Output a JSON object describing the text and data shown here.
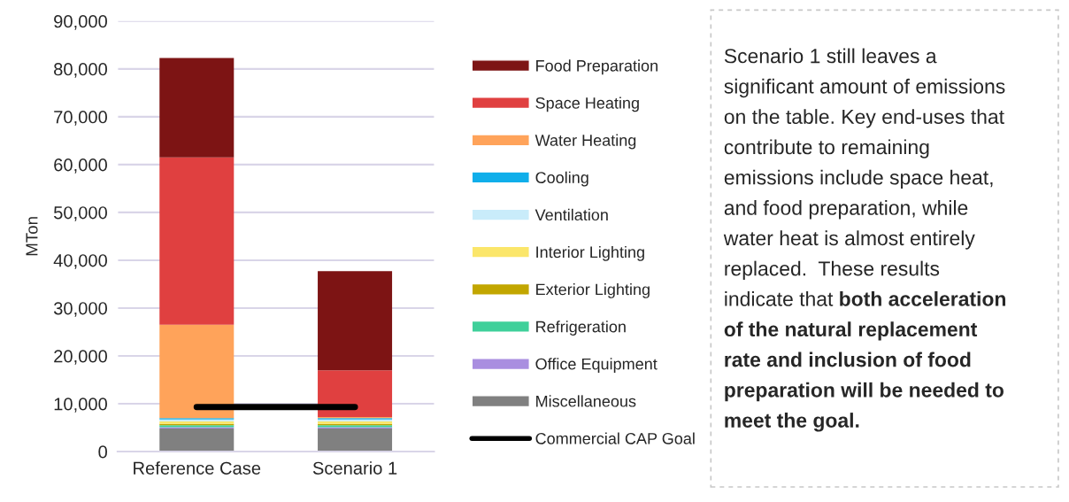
{
  "chart_data": {
    "type": "bar",
    "stacked": true,
    "ylabel": "MTon",
    "categories": [
      "Reference Case",
      "Scenario 1"
    ],
    "series": [
      {
        "name": "Miscellaneous",
        "color": "#808080",
        "values": [
          4800,
          4800
        ]
      },
      {
        "name": "Office Equipment",
        "color": "#a98ee0",
        "values": [
          300,
          300
        ]
      },
      {
        "name": "Refrigeration",
        "color": "#3fd09a",
        "values": [
          400,
          400
        ]
      },
      {
        "name": "Exterior Lighting",
        "color": "#c2a600",
        "values": [
          300,
          300
        ]
      },
      {
        "name": "Interior Lighting",
        "color": "#fbe66a",
        "values": [
          500,
          500
        ]
      },
      {
        "name": "Ventilation",
        "color": "#c9ecfa",
        "values": [
          400,
          400
        ]
      },
      {
        "name": "Cooling",
        "color": "#10aeea",
        "values": [
          300,
          300
        ]
      },
      {
        "name": "Water Heating",
        "color": "#ffa35a",
        "values": [
          19500,
          200
        ]
      },
      {
        "name": "Space Heating",
        "color": "#e04040",
        "values": [
          35000,
          9800
        ]
      },
      {
        "name": "Food Preparation",
        "color": "#7d1414",
        "values": [
          20800,
          20700
        ]
      },
      {
        "name": "Commercial CAP Goal",
        "type": "line",
        "color": "#000000",
        "values": [
          9300,
          9300
        ]
      }
    ],
    "ylim": [
      0,
      90000
    ],
    "yticks": [
      {
        "value": 0,
        "label": "0"
      },
      {
        "value": 10000,
        "label": "10,000"
      },
      {
        "value": 20000,
        "label": "20,000"
      },
      {
        "value": 30000,
        "label": "30,000"
      },
      {
        "value": 40000,
        "label": "40,000"
      },
      {
        "value": 50000,
        "label": "50,000"
      },
      {
        "value": 60000,
        "label": "60,000"
      },
      {
        "value": 70000,
        "label": "70,000"
      },
      {
        "value": 80000,
        "label": "80,000"
      },
      {
        "value": 90000,
        "label": "90,000"
      }
    ],
    "grid": "y",
    "legend": "right",
    "annotations": [
      "Scenario 1 still leaves a\nsignificant amount of emissions\non the table. Key end-uses that\ncontribute to remaining\nemissions include space heat,\nand food preparation, while\nwater heat is almost entirely\nreplaced.  These results\nindicate that ",
      "both acceleration\nof the natural replacement\nrate and inclusion of food\npreparation will be needed to\nmeet the goal."
    ]
  }
}
